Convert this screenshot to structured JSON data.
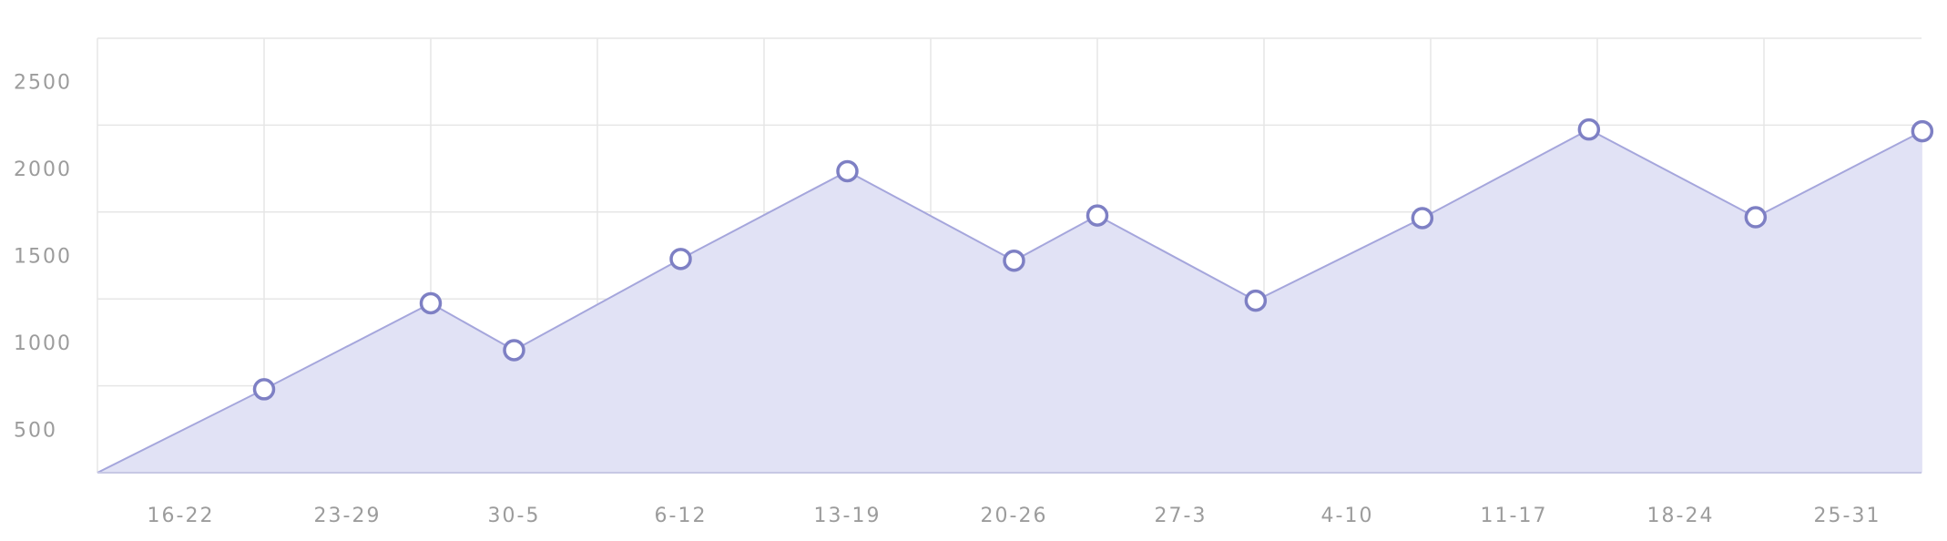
{
  "chart_data": {
    "type": "area",
    "x_ticks": [
      "16-22",
      "23-29",
      "30-5",
      "6-12",
      "13-19",
      "20-26",
      "27-3",
      "4-10",
      "11-17",
      "18-24",
      "25-31"
    ],
    "y_ticks": [
      "500",
      "1000",
      "1500",
      "2000",
      "2500"
    ],
    "ylim": [
      250,
      2750
    ],
    "grid": true,
    "points": [
      {
        "x": 0.0,
        "y": 250
      },
      {
        "x": 1.0,
        "y": 730
      },
      {
        "x": 2.0,
        "y": 1225
      },
      {
        "x": 2.5,
        "y": 955
      },
      {
        "x": 3.5,
        "y": 1480
      },
      {
        "x": 4.5,
        "y": 1985
      },
      {
        "x": 5.5,
        "y": 1470
      },
      {
        "x": 6.0,
        "y": 1730
      },
      {
        "x": 6.95,
        "y": 1240
      },
      {
        "x": 7.95,
        "y": 1715
      },
      {
        "x": 8.95,
        "y": 2225
      },
      {
        "x": 9.95,
        "y": 1720
      },
      {
        "x": 10.95,
        "y": 2215
      }
    ],
    "marker_start_index": 1
  },
  "colors": {
    "fill": "#e1e2f5",
    "line": "#a5a6dc",
    "marker_stroke": "#7e80c4",
    "marker_fill": "#ffffff",
    "grid": "#e6e6e6",
    "axis": "#c7c8e4",
    "tick_text": "#9c9c9c"
  }
}
